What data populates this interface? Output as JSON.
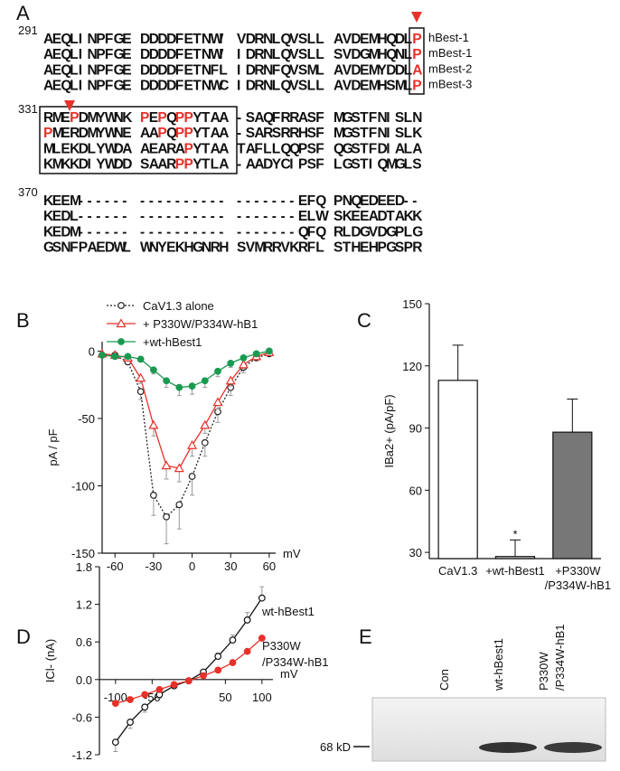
{
  "panel_labels": [
    "A",
    "B",
    "C",
    "D",
    "E"
  ],
  "alignment": {
    "species": [
      "hBest-1",
      "mBest-1",
      "mBest-2",
      "mBest-3"
    ],
    "blocks": [
      {
        "start": 291,
        "rows": [
          {
            "seq": "AEQLINPFGE DDDDFETNWI VDRNLQVSLL AVDEMHQDLP",
            "highlight": [
              42
            ]
          },
          {
            "seq": "AEQLINPFGE DDDDFETNWI IDRNLQVSLL SVDGMHQNLP",
            "highlight": [
              42
            ]
          },
          {
            "seq": "AEQLINPFGE DDDDFETNFL IDRNFQVSML AVDEMYDDLA",
            "highlight": [
              42
            ]
          },
          {
            "seq": "AEQLINPFGE DDDDFETNWC IDRNLQVSLL AVDEMHSMLP",
            "highlight": [
              42
            ]
          }
        ]
      },
      {
        "start": 331,
        "rows": [
          {
            "seq": "RMEPDMYWNK PEPQPPYTAA -SAQFRRASF MGSTFNISLN",
            "highlight": [
              3,
              11,
              13,
              15,
              16
            ]
          },
          {
            "seq": "PMERDMYWNE AAPQPPYTAA -SARSRRHSF MGSTFNISLK",
            "highlight": [
              0,
              13,
              15,
              16
            ]
          },
          {
            "seq": "MLEKDLYWDA AEARAPYTAA TAFLLQQPSF QGSTFDIALA",
            "highlight": [
              16
            ]
          },
          {
            "seq": "KMKKDIYWDD SAARPPYTLA -AADYCIPSF LGSTIQMGLS",
            "highlight": [
              15,
              16
            ]
          }
        ]
      },
      {
        "start": 370,
        "rows": [
          {
            "seq": "KEEM------ ---------- -------EFQ PNQEDEED--",
            "highlight": []
          },
          {
            "seq": "KEDL------ ---------- -------ELW SKEEADTAKK",
            "highlight": []
          },
          {
            "seq": "KEDM------ ---------- -------QFQ RLDGVDGPLG",
            "highlight": []
          },
          {
            "seq": "GSNFPAEDWL WNYEKHGNRH SVMRRVKRFL STHEHPGSPR",
            "highlight": []
          }
        ]
      }
    ]
  },
  "chart_data": [
    {
      "type": "line",
      "x_label": "mV",
      "y_label": "pA / pF",
      "x": [
        -70,
        -60,
        -50,
        -40,
        -30,
        -20,
        -10,
        0,
        10,
        20,
        30,
        40,
        50,
        60
      ],
      "xlim": [
        -70,
        65
      ],
      "xticks": [
        -60,
        -30,
        0,
        30,
        60
      ],
      "ylim": [
        -150,
        7
      ],
      "yticks": [
        0,
        -50,
        -100,
        -150
      ],
      "series": [
        {
          "name": "CaV1.3 alone",
          "color": "#222222",
          "marker": "circle-open",
          "line_style": "dotted",
          "values": [
            -3,
            -3,
            -8,
            -30,
            -107,
            -123,
            -114,
            -93,
            -68,
            -45,
            -27,
            -12,
            -5,
            -2
          ],
          "errors": [
            1,
            1,
            2,
            6,
            15,
            20,
            18,
            14,
            10,
            8,
            6,
            4,
            2,
            1
          ]
        },
        {
          "name": "+ P330W/P334W-hB1",
          "color": "#e8312a",
          "marker": "triangle-open",
          "line_style": "solid",
          "values": [
            -2,
            -3,
            -5,
            -20,
            -55,
            -85,
            -87,
            -70,
            -55,
            -38,
            -22,
            -10,
            -4,
            -1
          ],
          "errors": [
            1,
            1,
            1,
            4,
            8,
            10,
            10,
            8,
            6,
            5,
            4,
            3,
            2,
            1
          ]
        },
        {
          "name": "+wt-hBest1",
          "color": "#1a9a50",
          "marker": "circle",
          "line_style": "solid",
          "values": [
            -3,
            -4,
            -4,
            -6,
            -14,
            -22,
            -27,
            -26,
            -22,
            -15,
            -9,
            -5,
            -2,
            0
          ],
          "errors": [
            1,
            1,
            1,
            2,
            3,
            5,
            6,
            6,
            5,
            4,
            3,
            2,
            1,
            1
          ]
        }
      ]
    },
    {
      "type": "bar",
      "y_label": "IBa2+ (pA/pF)",
      "categories": [
        "CaV1.3",
        "+wt-hBest1",
        "+P330W/P334W-hB1"
      ],
      "values": [
        113,
        28,
        88
      ],
      "errors": [
        17,
        8,
        16
      ],
      "colors": [
        "#ffffff",
        "#c8c8c8",
        "#777777"
      ],
      "ylim": [
        27,
        150
      ],
      "yticks": [
        30,
        60,
        90,
        120,
        150
      ],
      "annotations": [
        "*"
      ],
      "annotation_color": "#e8312a"
    },
    {
      "type": "line",
      "x_label": "mV",
      "y_label": "ICl- (nA)",
      "x": [
        -100,
        -80,
        -60,
        -40,
        -20,
        0,
        20,
        40,
        60,
        80,
        100
      ],
      "xlim": [
        -122,
        115
      ],
      "xticks": [
        -100,
        -50,
        50,
        100
      ],
      "ylim": [
        -1.2,
        1.8
      ],
      "yticks": [
        {
          "value": 1.8,
          "label": "1.8"
        },
        1.2,
        0.6,
        {
          "value": 0,
          "label": "0.0"
        },
        -0.6,
        -1.2
      ],
      "series": [
        {
          "color": "#111111",
          "marker": "circle-open",
          "line_style": "solid",
          "values": [
            -1.0,
            -0.68,
            -0.44,
            -0.24,
            -0.1,
            -0.02,
            0.12,
            0.37,
            0.63,
            0.95,
            1.3
          ],
          "errors": [
            0.15,
            0.1,
            0.08,
            0.06,
            0.04,
            0.03,
            0.03,
            0.05,
            0.08,
            0.12,
            0.18
          ]
        },
        {
          "color": "#e8312a",
          "marker": "circle",
          "line_style": "solid",
          "values": [
            -0.38,
            -0.32,
            -0.24,
            -0.16,
            -0.08,
            -0.02,
            0.06,
            0.15,
            0.27,
            0.45,
            0.66
          ]
        }
      ],
      "annotations": [
        "wt-hBest1",
        "P330W",
        "/P334W-hB1"
      ]
    }
  ],
  "blot": {
    "lanes": [
      "Con",
      "wt-hBest1",
      "P330W/P334W-hB1"
    ],
    "marker": "68 kD"
  }
}
